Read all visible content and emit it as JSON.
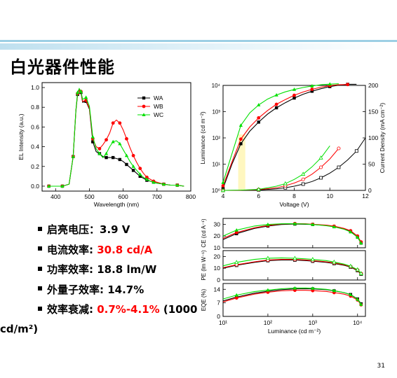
{
  "page": {
    "title": "白光器件性能",
    "page_number": "31"
  },
  "bullets": {
    "b1": {
      "label": "启亮电压：",
      "value": "3.9 V"
    },
    "b2": {
      "label": "电流效率: ",
      "value": "30.8 cd/A"
    },
    "b3": {
      "label": "功率效率: ",
      "value": "18.8 lm/W"
    },
    "b4": {
      "label": "外量子效率: ",
      "value": "14.7%"
    },
    "b5": {
      "label": "效率衰减: ",
      "value_red": "0.7%-4.1%",
      "value_rest": " (1000",
      "value_cont": "cd/m²)"
    }
  },
  "colors": {
    "WA": "#000000",
    "WB": "#ff0000",
    "WC": "#00e000"
  },
  "chart_data": [
    {
      "type": "line",
      "xlabel": "Wavelength (nm)",
      "ylabel": "EL Intensity (a.u.)",
      "xlim": [
        360,
        800
      ],
      "ylim": [
        -0.05,
        1.05
      ],
      "xticks": [
        400,
        500,
        600,
        700,
        800
      ],
      "yticks": [
        "0.0",
        "0.2",
        "0.4",
        "0.6",
        "0.8",
        "1.0"
      ],
      "legend": "top-right",
      "x": [
        380,
        400,
        420,
        440,
        452,
        460,
        465,
        470,
        475,
        480,
        490,
        500,
        510,
        520,
        530,
        540,
        550,
        560,
        570,
        580,
        590,
        600,
        610,
        620,
        630,
        640,
        650,
        660,
        670,
        680,
        690,
        700,
        720,
        740,
        760,
        780
      ],
      "series": [
        {
          "name": "WA",
          "values": [
            0,
            0,
            0,
            0.02,
            0.3,
            0.76,
            0.93,
            0.98,
            0.95,
            0.85,
            0.86,
            0.78,
            0.45,
            0.35,
            0.33,
            0.3,
            0.29,
            0.29,
            0.29,
            0.28,
            0.27,
            0.25,
            0.22,
            0.19,
            0.16,
            0.13,
            0.1,
            0.08,
            0.06,
            0.05,
            0.04,
            0.03,
            0.02,
            0.01,
            0.01,
            0
          ]
        },
        {
          "name": "WB",
          "values": [
            0,
            0,
            0,
            0.02,
            0.3,
            0.77,
            0.94,
            0.98,
            0.96,
            0.86,
            0.87,
            0.79,
            0.48,
            0.4,
            0.38,
            0.42,
            0.47,
            0.54,
            0.64,
            0.67,
            0.64,
            0.57,
            0.48,
            0.39,
            0.31,
            0.24,
            0.18,
            0.13,
            0.09,
            0.07,
            0.05,
            0.04,
            0.02,
            0.01,
            0.01,
            0
          ]
        },
        {
          "name": "WC",
          "values": [
            0,
            0,
            0,
            0.02,
            0.3,
            0.77,
            0.95,
            0.99,
            0.96,
            0.88,
            0.9,
            0.81,
            0.5,
            0.38,
            0.33,
            0.29,
            0.33,
            0.4,
            0.45,
            0.46,
            0.43,
            0.37,
            0.31,
            0.25,
            0.2,
            0.16,
            0.12,
            0.09,
            0.07,
            0.05,
            0.04,
            0.03,
            0.02,
            0.01,
            0.01,
            0
          ]
        }
      ]
    },
    {
      "type": "line",
      "xlabel": "Voltage (V)",
      "ylabel": "Luminance (cd m⁻²)",
      "y2label": "Current Density (mA cm⁻²)",
      "xlim": [
        4,
        12
      ],
      "ylim_log": [
        1,
        10000
      ],
      "y2lim": [
        0,
        200
      ],
      "xticks": [
        4,
        6,
        8,
        10,
        12
      ],
      "yticks": [
        "10⁰",
        "10¹",
        "10²",
        "10³",
        "10⁴"
      ],
      "y2ticks": [
        0,
        50,
        100,
        150,
        200
      ],
      "luminance": {
        "x": [
          4,
          4.5,
          5,
          5.5,
          6,
          6.5,
          7,
          7.5,
          8,
          8.5,
          9,
          9.5,
          10,
          10.5,
          11,
          11.5
        ],
        "series": [
          {
            "name": "WA",
            "values": [
              1.2,
              10,
              60,
              180,
              400,
              800,
              1400,
              2200,
              3300,
              4600,
              6000,
              7500,
              9000,
              10200,
              11000,
              11000
            ]
          },
          {
            "name": "WB",
            "values": [
              1.5,
              12,
              90,
              260,
              580,
              1100,
              1900,
              2900,
              4200,
              5600,
              7100,
              8600,
              9800,
              10600,
              10800,
              null
            ]
          },
          {
            "name": "WC",
            "values": [
              2,
              25,
              300,
              900,
              1800,
              3000,
              4300,
              5700,
              7000,
              8300,
              9500,
              10600,
              11200,
              11500,
              null,
              null
            ]
          }
        ]
      },
      "current_density": {
        "x": [
          4,
          5,
          6,
          7,
          7.5,
          8,
          8.5,
          9,
          9.5,
          10,
          10.5,
          11,
          11.5,
          12
        ],
        "series": [
          {
            "name": "WA",
            "values": [
              0,
              0.2,
              1,
              3,
              5,
              8,
              12,
              17,
              24,
              33,
              44,
              58,
              75,
              100
            ]
          },
          {
            "name": "WB",
            "values": [
              0,
              0.3,
              1.5,
              5,
              9,
              14,
              21,
              31,
              44,
              60,
              80,
              null,
              null,
              null
            ]
          },
          {
            "name": "WC",
            "values": [
              0,
              0.5,
              2,
              8,
              13,
              21,
              31,
              45,
              62,
              85,
              null,
              null,
              null,
              null
            ]
          }
        ]
      }
    },
    {
      "type": "line",
      "xlabel": "Luminance (cd m⁻²)",
      "x_log": true,
      "xlim": [
        10,
        15000
      ],
      "xticks": [
        "10¹",
        "10²",
        "10³",
        "10⁴"
      ],
      "x": [
        10,
        20,
        50,
        100,
        200,
        400,
        700,
        1000,
        2000,
        3000,
        5000,
        7000,
        10000,
        12000
      ],
      "panels": [
        {
          "ylabel": "CE (cd A⁻¹)",
          "ylim": [
            10,
            35
          ],
          "yticks": [
            10,
            20,
            30
          ],
          "series": [
            {
              "name": "WA",
              "values": [
                17,
                22,
                26.5,
                28.5,
                29.8,
                30.2,
                30,
                29.8,
                29,
                28,
                26,
                24,
                19,
                14
              ]
            },
            {
              "name": "WB",
              "values": [
                18,
                23,
                27,
                29,
                30.3,
                30.6,
                30.4,
                30,
                29.3,
                28.4,
                26.5,
                24.5,
                20,
                15
              ]
            },
            {
              "name": "WC",
              "values": [
                20,
                25,
                28.5,
                29.8,
                30.4,
                30.5,
                30.2,
                29.8,
                28.8,
                27.8,
                25.8,
                23.5,
                19,
                14
              ]
            }
          ]
        },
        {
          "ylabel": "PE (lm W⁻¹)",
          "ylim": [
            0,
            25
          ],
          "yticks": [
            0,
            10,
            20
          ],
          "series": [
            {
              "name": "WA",
              "values": [
                10,
                12.5,
                15,
                16.5,
                17,
                17,
                16.5,
                16,
                15,
                14,
                12.5,
                11,
                8,
                5
              ]
            },
            {
              "name": "WB",
              "values": [
                10.5,
                13,
                15.5,
                17,
                17.5,
                17.5,
                17,
                16.5,
                15.5,
                14.5,
                13,
                11.3,
                8.5,
                5.5
              ]
            },
            {
              "name": "WC",
              "values": [
                12,
                15,
                17.5,
                18.5,
                18.8,
                18.5,
                18,
                17.5,
                16.5,
                15.3,
                13.5,
                11.8,
                8.8,
                5.5
              ]
            }
          ]
        },
        {
          "ylabel": "EQE (%)",
          "ylim": [
            0,
            17
          ],
          "yticks": [
            0,
            7,
            14
          ],
          "series": [
            {
              "name": "WA",
              "values": [
                8,
                10,
                12,
                13,
                13.8,
                14.2,
                14.3,
                14.2,
                13.8,
                13.2,
                12.3,
                11.3,
                9,
                6.5
              ]
            },
            {
              "name": "WB",
              "values": [
                7.5,
                9.5,
                11.5,
                12.5,
                13.2,
                13.5,
                13.5,
                13.3,
                12.9,
                12.3,
                11.5,
                10.5,
                8.5,
                6
              ]
            },
            {
              "name": "WC",
              "values": [
                9,
                11,
                12.8,
                13.6,
                14.3,
                14.6,
                14.7,
                14.5,
                14,
                13.3,
                12.3,
                11.2,
                8.8,
                6.2
              ]
            }
          ]
        }
      ]
    }
  ]
}
